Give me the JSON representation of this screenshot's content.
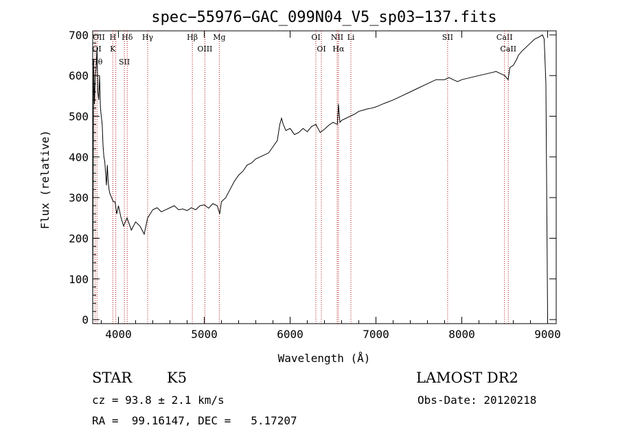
{
  "chart_data": {
    "type": "line",
    "title": "spec−55976−GAC_099N04_V5_sp03−137.fits",
    "xlabel": "Wavelength (Å)",
    "ylabel": "Flux (relative)",
    "xlim": [
      3700,
      9100
    ],
    "ylim": [
      -10,
      710
    ],
    "xticks": [
      4000,
      5000,
      6000,
      7000,
      8000,
      9000
    ],
    "yticks": [
      0,
      100,
      200,
      300,
      400,
      500,
      600,
      700
    ],
    "grid": false,
    "line_color": "#000000",
    "marker_color": "#aa0000",
    "series": [
      {
        "x": [
          3700,
          3710,
          3720,
          3730,
          3740,
          3750,
          3760,
          3770,
          3780,
          3790,
          3800,
          3810,
          3820,
          3830,
          3840,
          3850,
          3860,
          3870,
          3880,
          3890,
          3900,
          3920,
          3940,
          3960,
          3980,
          4000,
          4030,
          4060,
          4100,
          4150,
          4200,
          4250,
          4300,
          4340,
          4400,
          4450,
          4500,
          4550,
          4600,
          4650,
          4700,
          4750,
          4800,
          4850,
          4900,
          4950,
          5000,
          5050,
          5100,
          5150,
          5180,
          5200,
          5250,
          5300,
          5350,
          5400,
          5450,
          5500,
          5550,
          5600,
          5650,
          5700,
          5750,
          5800,
          5850,
          5880,
          5900,
          5920,
          5950,
          6000,
          6050,
          6100,
          6150,
          6200,
          6250,
          6300,
          6350,
          6400,
          6450,
          6500,
          6550,
          6563,
          6580,
          6600,
          6650,
          6700,
          6750,
          6800,
          6850,
          6900,
          6950,
          7000,
          7100,
          7200,
          7300,
          7400,
          7500,
          7600,
          7700,
          7800,
          7850,
          7900,
          7950,
          8000,
          8100,
          8200,
          8300,
          8400,
          8450,
          8500,
          8540,
          8560,
          8600,
          8640,
          8660,
          8700,
          8750,
          8800,
          8850,
          8900,
          8940,
          8960,
          8980,
          9000
        ],
        "y": [
          0,
          640,
          530,
          600,
          620,
          670,
          560,
          540,
          600,
          520,
          500,
          480,
          430,
          400,
          390,
          360,
          330,
          380,
          340,
          320,
          310,
          300,
          290,
          290,
          260,
          280,
          250,
          230,
          250,
          220,
          240,
          230,
          210,
          250,
          270,
          275,
          265,
          270,
          275,
          280,
          270,
          272,
          268,
          275,
          270,
          280,
          282,
          274,
          285,
          280,
          260,
          290,
          300,
          320,
          340,
          355,
          365,
          380,
          385,
          395,
          400,
          405,
          410,
          425,
          440,
          480,
          495,
          480,
          465,
          470,
          455,
          460,
          470,
          462,
          475,
          480,
          460,
          468,
          478,
          485,
          480,
          530,
          485,
          490,
          495,
          500,
          505,
          512,
          515,
          518,
          520,
          523,
          532,
          540,
          550,
          560,
          570,
          580,
          590,
          590,
          595,
          590,
          585,
          590,
          595,
          600,
          605,
          610,
          605,
          600,
          590,
          620,
          625,
          640,
          650,
          660,
          670,
          680,
          690,
          695,
          700,
          690,
          580,
          0
        ]
      }
    ],
    "lines": [
      {
        "x": 3727,
        "labels": [
          "OII",
          "OI"
        ]
      },
      {
        "x": 3750,
        "labels": [
          "Hθ"
        ]
      },
      {
        "x": 3934,
        "labels": [
          "H",
          "K"
        ]
      },
      {
        "x": 3969,
        "labels": []
      },
      {
        "x": 4069,
        "labels": [
          "SII"
        ]
      },
      {
        "x": 4102,
        "labels": [
          "Hδ"
        ]
      },
      {
        "x": 4340,
        "labels": [
          "Hγ"
        ]
      },
      {
        "x": 4861,
        "labels": [
          "Hβ"
        ]
      },
      {
        "x": 5007,
        "labels": [
          "OIII"
        ]
      },
      {
        "x": 5175,
        "labels": [
          "Mg"
        ]
      },
      {
        "x": 6300,
        "labels": [
          "OI"
        ]
      },
      {
        "x": 6364,
        "labels": [
          "OI"
        ]
      },
      {
        "x": 6548,
        "labels": [
          "NII"
        ]
      },
      {
        "x": 6563,
        "labels": [
          "Hα"
        ]
      },
      {
        "x": 6708,
        "labels": [
          "Li"
        ]
      },
      {
        "x": 7835,
        "labels": [
          "SII"
        ]
      },
      {
        "x": 8498,
        "labels": [
          "CaII"
        ]
      },
      {
        "x": 8542,
        "labels": [
          "CaII"
        ]
      }
    ]
  },
  "info": {
    "class": "STAR",
    "subclass": "K5",
    "survey": "LAMOST DR2",
    "cz": "cz = 93.8 ± 2.1 km/s",
    "obs_date": "Obs-Date: 20120218",
    "radec": "RA =  99.16147, DEC =   5.17207"
  }
}
